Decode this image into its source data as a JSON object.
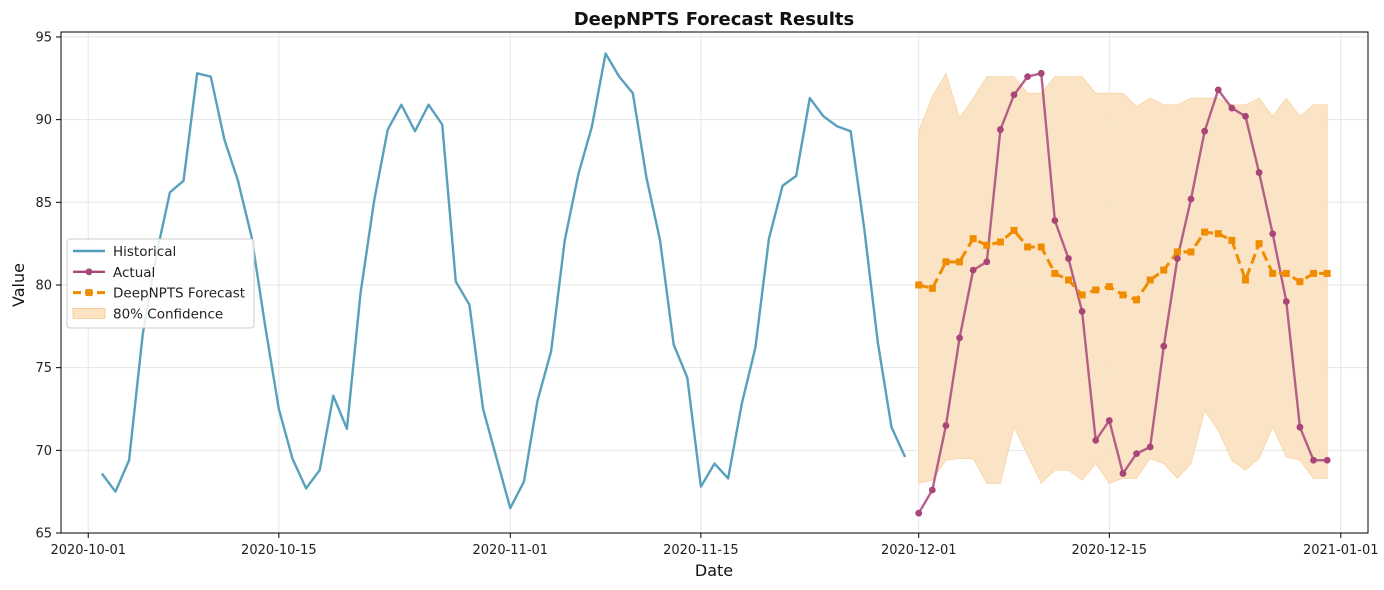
{
  "chart_data": {
    "type": "line",
    "title": "DeepNPTS Forecast Results",
    "xlabel": "Date",
    "ylabel": "Value",
    "xlim": [
      "2020-09-29",
      "2021-01-03"
    ],
    "ylim": [
      65,
      95.3
    ],
    "x_ticks": [
      "2020-10-01",
      "2020-10-15",
      "2020-11-01",
      "2020-11-15",
      "2020-12-01",
      "2020-12-15",
      "2021-01-01"
    ],
    "y_ticks": [
      65,
      70,
      75,
      80,
      85,
      90,
      95
    ],
    "grid": true,
    "legend_position": "center-left",
    "colors": {
      "historical": "#4f9bb8",
      "actual": "#a8467a",
      "forecast": "#f08c00",
      "confidence": "#fbe3c4",
      "confidence_edge": "#f7c98a",
      "axis": "#000000",
      "grid": "#e6e6e6"
    },
    "series": [
      {
        "name": "Historical",
        "style": "solid",
        "x": [
          "2020-10-02",
          "2020-10-03",
          "2020-10-04",
          "2020-10-05",
          "2020-10-06",
          "2020-10-07",
          "2020-10-08",
          "2020-10-09",
          "2020-10-10",
          "2020-10-11",
          "2020-10-12",
          "2020-10-13",
          "2020-10-14",
          "2020-10-15",
          "2020-10-16",
          "2020-10-17",
          "2020-10-18",
          "2020-10-19",
          "2020-10-20",
          "2020-10-21",
          "2020-10-22",
          "2020-10-23",
          "2020-10-24",
          "2020-10-25",
          "2020-10-26",
          "2020-10-27",
          "2020-10-28",
          "2020-10-29",
          "2020-10-30",
          "2020-10-31",
          "2020-11-01",
          "2020-11-02",
          "2020-11-03",
          "2020-11-04",
          "2020-11-05",
          "2020-11-06",
          "2020-11-07",
          "2020-11-08",
          "2020-11-09",
          "2020-11-10",
          "2020-11-11",
          "2020-11-12",
          "2020-11-13",
          "2020-11-14",
          "2020-11-15",
          "2020-11-16",
          "2020-11-17",
          "2020-11-18",
          "2020-11-19",
          "2020-11-20",
          "2020-11-21",
          "2020-11-22",
          "2020-11-23",
          "2020-11-24",
          "2020-11-25",
          "2020-11-26",
          "2020-11-27",
          "2020-11-28",
          "2020-11-29",
          "2020-11-30"
        ],
        "values": [
          68.6,
          67.5,
          69.4,
          77.0,
          81.8,
          85.6,
          86.3,
          92.8,
          92.6,
          88.8,
          86.3,
          82.9,
          77.5,
          72.5,
          69.5,
          67.7,
          68.8,
          73.3,
          71.3,
          79.5,
          85.1,
          89.4,
          90.9,
          89.3,
          90.9,
          89.7,
          80.2,
          78.8,
          72.5,
          69.5,
          66.5,
          68.1,
          73.0,
          76.0,
          82.7,
          86.7,
          89.6,
          94.0,
          92.6,
          91.6,
          86.5,
          82.7,
          76.4,
          74.4,
          67.8,
          69.2,
          68.3,
          72.8,
          76.2,
          82.8,
          86.0,
          86.6,
          91.3,
          90.2,
          89.6,
          89.3,
          83.4,
          76.5,
          71.4,
          69.6
        ]
      },
      {
        "name": "Actual",
        "style": "solid-dot",
        "x": [
          "2020-12-01",
          "2020-12-02",
          "2020-12-03",
          "2020-12-04",
          "2020-12-05",
          "2020-12-06",
          "2020-12-07",
          "2020-12-08",
          "2020-12-09",
          "2020-12-10",
          "2020-12-11",
          "2020-12-12",
          "2020-12-13",
          "2020-12-14",
          "2020-12-15",
          "2020-12-16",
          "2020-12-17",
          "2020-12-18",
          "2020-12-19",
          "2020-12-20",
          "2020-12-21",
          "2020-12-22",
          "2020-12-23",
          "2020-12-24",
          "2020-12-25",
          "2020-12-26",
          "2020-12-27",
          "2020-12-28",
          "2020-12-29",
          "2020-12-30",
          "2020-12-31"
        ],
        "values": [
          66.2,
          67.6,
          71.5,
          76.8,
          80.9,
          81.4,
          89.4,
          91.5,
          92.6,
          92.8,
          83.9,
          81.6,
          78.4,
          70.6,
          71.8,
          68.6,
          69.8,
          70.2,
          76.3,
          81.6,
          85.2,
          89.3,
          91.8,
          90.7,
          90.2,
          86.8,
          83.1,
          79.0,
          71.4,
          69.4,
          69.4
        ]
      },
      {
        "name": "DeepNPTS Forecast",
        "style": "dashed-square",
        "x": [
          "2020-12-01",
          "2020-12-02",
          "2020-12-03",
          "2020-12-04",
          "2020-12-05",
          "2020-12-06",
          "2020-12-07",
          "2020-12-08",
          "2020-12-09",
          "2020-12-10",
          "2020-12-11",
          "2020-12-12",
          "2020-12-13",
          "2020-12-14",
          "2020-12-15",
          "2020-12-16",
          "2020-12-17",
          "2020-12-18",
          "2020-12-19",
          "2020-12-20",
          "2020-12-21",
          "2020-12-22",
          "2020-12-23",
          "2020-12-24",
          "2020-12-25",
          "2020-12-26",
          "2020-12-27",
          "2020-12-28",
          "2020-12-29",
          "2020-12-30",
          "2020-12-31"
        ],
        "values": [
          80.0,
          79.8,
          81.4,
          81.4,
          82.8,
          82.4,
          82.6,
          83.3,
          82.3,
          82.3,
          80.7,
          80.3,
          79.4,
          79.7,
          79.9,
          79.4,
          79.1,
          80.3,
          80.9,
          82.0,
          82.0,
          83.2,
          83.1,
          82.7,
          80.3,
          82.5,
          80.7,
          80.7,
          80.2,
          80.7,
          80.7
        ]
      }
    ],
    "confidence": {
      "name": "80% Confidence",
      "x": [
        "2020-12-01",
        "2020-12-02",
        "2020-12-03",
        "2020-12-04",
        "2020-12-05",
        "2020-12-06",
        "2020-12-07",
        "2020-12-08",
        "2020-12-09",
        "2020-12-10",
        "2020-12-11",
        "2020-12-12",
        "2020-12-13",
        "2020-12-14",
        "2020-12-15",
        "2020-12-16",
        "2020-12-17",
        "2020-12-18",
        "2020-12-19",
        "2020-12-20",
        "2020-12-21",
        "2020-12-22",
        "2020-12-23",
        "2020-12-24",
        "2020-12-25",
        "2020-12-26",
        "2020-12-27",
        "2020-12-28",
        "2020-12-29",
        "2020-12-30",
        "2020-12-31"
      ],
      "lower": [
        68.0,
        68.2,
        69.4,
        69.5,
        69.5,
        68.0,
        68.0,
        71.4,
        69.7,
        68.0,
        68.8,
        68.8,
        68.2,
        69.2,
        68.0,
        68.3,
        68.3,
        69.5,
        69.2,
        68.3,
        69.2,
        72.4,
        71.2,
        69.4,
        68.8,
        69.5,
        71.4,
        69.6,
        69.4,
        68.3,
        68.3
      ],
      "upper": [
        89.3,
        91.4,
        92.8,
        90.1,
        91.3,
        92.6,
        92.6,
        92.6,
        91.6,
        91.6,
        92.6,
        92.6,
        92.6,
        91.6,
        91.6,
        91.6,
        90.8,
        91.3,
        90.9,
        90.9,
        91.3,
        91.3,
        91.3,
        90.9,
        90.9,
        91.3,
        90.2,
        91.3,
        90.2,
        90.9,
        90.9
      ]
    }
  }
}
